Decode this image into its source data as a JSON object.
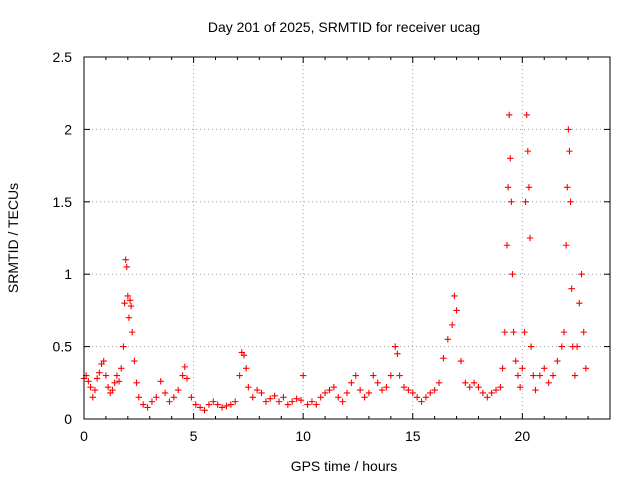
{
  "chart_data": {
    "type": "scatter",
    "title": "Day 201 of 2025, SRMTID for receiver ucag",
    "xlabel": "GPS time / hours",
    "ylabel": "SRMTID / TECUs",
    "xlim": [
      0,
      24
    ],
    "ylim": [
      0,
      2.5
    ],
    "x_ticks": [
      0,
      5,
      10,
      15,
      20
    ],
    "x_tick_labels": [
      "0",
      "5",
      "10",
      "15",
      "20"
    ],
    "y_ticks": [
      0,
      0.5,
      1,
      1.5,
      2,
      2.5
    ],
    "y_tick_labels": [
      "0",
      "0.5",
      "1",
      "1.5",
      "2",
      "2.5"
    ],
    "grid": true,
    "marker": "plus",
    "color": "#ff0000",
    "series": [
      {
        "name": "SRMTID",
        "points": [
          [
            0.0,
            0.28
          ],
          [
            0.1,
            0.3
          ],
          [
            0.2,
            0.26
          ],
          [
            0.3,
            0.22
          ],
          [
            0.4,
            0.15
          ],
          [
            0.5,
            0.2
          ],
          [
            0.6,
            0.28
          ],
          [
            0.7,
            0.32
          ],
          [
            0.8,
            0.38
          ],
          [
            0.9,
            0.4
          ],
          [
            1.0,
            0.3
          ],
          [
            1.1,
            0.22
          ],
          [
            1.2,
            0.18
          ],
          [
            1.3,
            0.2
          ],
          [
            1.4,
            0.25
          ],
          [
            1.5,
            0.3
          ],
          [
            1.6,
            0.26
          ],
          [
            1.7,
            0.35
          ],
          [
            1.8,
            0.5
          ],
          [
            1.85,
            0.8
          ],
          [
            1.9,
            1.1
          ],
          [
            1.95,
            1.05
          ],
          [
            2.0,
            0.85
          ],
          [
            2.05,
            0.7
          ],
          [
            2.1,
            0.82
          ],
          [
            2.15,
            0.78
          ],
          [
            2.2,
            0.6
          ],
          [
            2.3,
            0.4
          ],
          [
            2.4,
            0.25
          ],
          [
            2.5,
            0.15
          ],
          [
            2.7,
            0.1
          ],
          [
            2.9,
            0.08
          ],
          [
            3.1,
            0.12
          ],
          [
            3.3,
            0.15
          ],
          [
            3.5,
            0.26
          ],
          [
            3.7,
            0.18
          ],
          [
            3.9,
            0.12
          ],
          [
            4.1,
            0.15
          ],
          [
            4.3,
            0.2
          ],
          [
            4.5,
            0.3
          ],
          [
            4.6,
            0.36
          ],
          [
            4.7,
            0.28
          ],
          [
            4.9,
            0.15
          ],
          [
            5.1,
            0.1
          ],
          [
            5.3,
            0.08
          ],
          [
            5.5,
            0.06
          ],
          [
            5.7,
            0.1
          ],
          [
            5.9,
            0.12
          ],
          [
            6.1,
            0.1
          ],
          [
            6.3,
            0.08
          ],
          [
            6.5,
            0.09
          ],
          [
            6.7,
            0.1
          ],
          [
            6.9,
            0.12
          ],
          [
            7.1,
            0.3
          ],
          [
            7.2,
            0.46
          ],
          [
            7.3,
            0.44
          ],
          [
            7.4,
            0.35
          ],
          [
            7.5,
            0.22
          ],
          [
            7.7,
            0.15
          ],
          [
            7.9,
            0.2
          ],
          [
            8.1,
            0.18
          ],
          [
            8.3,
            0.12
          ],
          [
            8.5,
            0.14
          ],
          [
            8.7,
            0.16
          ],
          [
            8.9,
            0.12
          ],
          [
            9.1,
            0.15
          ],
          [
            9.3,
            0.1
          ],
          [
            9.5,
            0.12
          ],
          [
            9.7,
            0.14
          ],
          [
            9.9,
            0.13
          ],
          [
            10.0,
            0.3
          ],
          [
            10.2,
            0.1
          ],
          [
            10.4,
            0.12
          ],
          [
            10.6,
            0.1
          ],
          [
            10.8,
            0.15
          ],
          [
            11.0,
            0.18
          ],
          [
            11.2,
            0.2
          ],
          [
            11.4,
            0.22
          ],
          [
            11.6,
            0.15
          ],
          [
            11.8,
            0.12
          ],
          [
            12.0,
            0.18
          ],
          [
            12.2,
            0.25
          ],
          [
            12.4,
            0.3
          ],
          [
            12.6,
            0.2
          ],
          [
            12.8,
            0.15
          ],
          [
            13.0,
            0.18
          ],
          [
            13.2,
            0.3
          ],
          [
            13.4,
            0.25
          ],
          [
            13.6,
            0.2
          ],
          [
            13.8,
            0.22
          ],
          [
            14.0,
            0.3
          ],
          [
            14.2,
            0.5
          ],
          [
            14.3,
            0.45
          ],
          [
            14.4,
            0.3
          ],
          [
            14.6,
            0.22
          ],
          [
            14.8,
            0.2
          ],
          [
            15.0,
            0.18
          ],
          [
            15.2,
            0.15
          ],
          [
            15.4,
            0.12
          ],
          [
            15.6,
            0.15
          ],
          [
            15.8,
            0.18
          ],
          [
            16.0,
            0.2
          ],
          [
            16.2,
            0.25
          ],
          [
            16.4,
            0.42
          ],
          [
            16.6,
            0.55
          ],
          [
            16.8,
            0.65
          ],
          [
            16.9,
            0.85
          ],
          [
            17.0,
            0.75
          ],
          [
            17.2,
            0.4
          ],
          [
            17.4,
            0.25
          ],
          [
            17.6,
            0.22
          ],
          [
            17.8,
            0.25
          ],
          [
            18.0,
            0.22
          ],
          [
            18.2,
            0.18
          ],
          [
            18.4,
            0.15
          ],
          [
            18.6,
            0.18
          ],
          [
            18.8,
            0.2
          ],
          [
            19.0,
            0.22
          ],
          [
            19.1,
            0.35
          ],
          [
            19.2,
            0.6
          ],
          [
            19.3,
            1.2
          ],
          [
            19.35,
            1.6
          ],
          [
            19.4,
            2.1
          ],
          [
            19.45,
            1.8
          ],
          [
            19.5,
            1.5
          ],
          [
            19.55,
            1.0
          ],
          [
            19.6,
            0.6
          ],
          [
            19.7,
            0.4
          ],
          [
            19.8,
            0.3
          ],
          [
            19.9,
            0.22
          ],
          [
            20.0,
            0.35
          ],
          [
            20.1,
            0.6
          ],
          [
            20.15,
            1.5
          ],
          [
            20.2,
            2.1
          ],
          [
            20.25,
            1.85
          ],
          [
            20.3,
            1.6
          ],
          [
            20.35,
            1.25
          ],
          [
            20.4,
            0.5
          ],
          [
            20.5,
            0.3
          ],
          [
            20.6,
            0.2
          ],
          [
            20.8,
            0.3
          ],
          [
            21.0,
            0.35
          ],
          [
            21.2,
            0.25
          ],
          [
            21.4,
            0.3
          ],
          [
            21.6,
            0.4
          ],
          [
            21.8,
            0.5
          ],
          [
            21.9,
            0.6
          ],
          [
            22.0,
            1.2
          ],
          [
            22.05,
            1.6
          ],
          [
            22.1,
            2.0
          ],
          [
            22.15,
            1.85
          ],
          [
            22.2,
            1.5
          ],
          [
            22.25,
            0.9
          ],
          [
            22.3,
            0.5
          ],
          [
            22.4,
            0.3
          ],
          [
            22.5,
            0.5
          ],
          [
            22.6,
            0.8
          ],
          [
            22.7,
            1.0
          ],
          [
            22.8,
            0.6
          ],
          [
            22.9,
            0.35
          ]
        ]
      }
    ]
  }
}
